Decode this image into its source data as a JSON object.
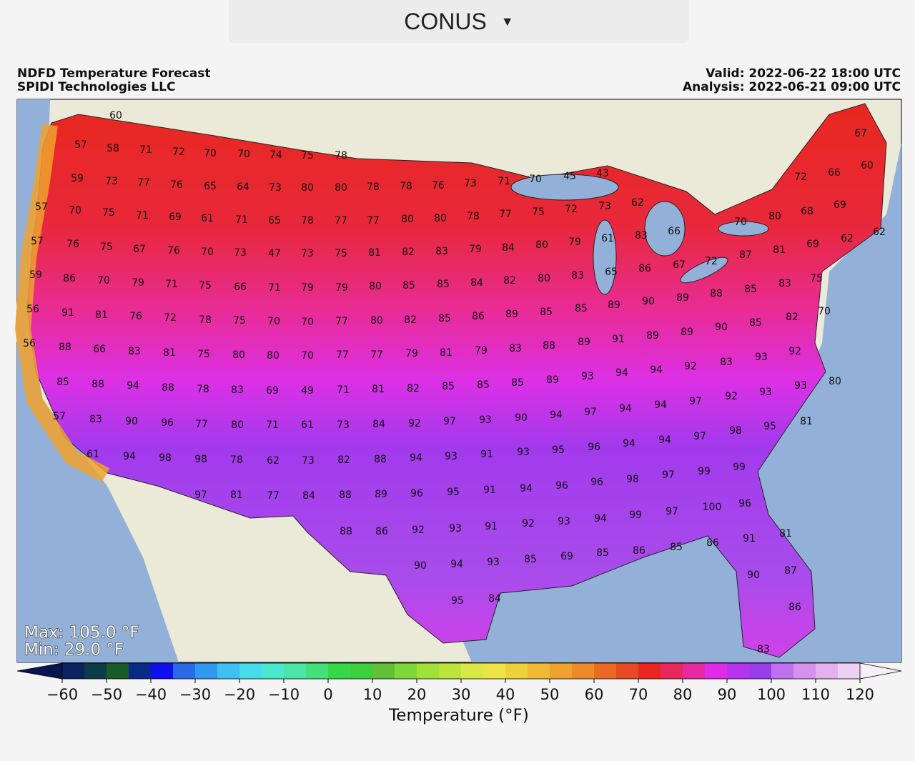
{
  "header": {
    "dropdown": "CONUS"
  },
  "map": {
    "title": [
      "NDFD Temperature Forecast",
      "SPIDI Technologies LLC"
    ],
    "valid": "Valid: 2022-06-22 18:00 UTC",
    "analysis": "Analysis: 2022-06-21 09:00 UTC",
    "max": "Max: 105.0 °F",
    "min": "Min: 29.0 °F",
    "labels": [
      60,
      57,
      58,
      71,
      72,
      70,
      70,
      74,
      75,
      78,
      59,
      73,
      77,
      76,
      65,
      64,
      73,
      80,
      80,
      78,
      78,
      76,
      73,
      71,
      70,
      45,
      43,
      72,
      66,
      60,
      67,
      57,
      70,
      75,
      71,
      69,
      61,
      71,
      65,
      78,
      77,
      77,
      80,
      80,
      78,
      77,
      75,
      72,
      73,
      62,
      80,
      68,
      69,
      57,
      76,
      75,
      67,
      76,
      70,
      73,
      47,
      73,
      75,
      81,
      82,
      83,
      79,
      84,
      80,
      79,
      61,
      83,
      66,
      70,
      81,
      69,
      62,
      62,
      59,
      86,
      70,
      79,
      71,
      75,
      66,
      71,
      79,
      79,
      80,
      85,
      85,
      84,
      82,
      80,
      83,
      65,
      86,
      67,
      72,
      87,
      75,
      56,
      91,
      81,
      76,
      72,
      78,
      75,
      70,
      70,
      77,
      80,
      82,
      85,
      86,
      89,
      85,
      85,
      89,
      90,
      89,
      88,
      85,
      83,
      82,
      70,
      56,
      88,
      66,
      83,
      81,
      75,
      80,
      80,
      70,
      77,
      77,
      79,
      81,
      79,
      83,
      88,
      89,
      91,
      89,
      89,
      90,
      85,
      93,
      92,
      92,
      83,
      85,
      88,
      94,
      88,
      78,
      83,
      69,
      49,
      71,
      81,
      82,
      85,
      85,
      85,
      89,
      93,
      94,
      94,
      92,
      93,
      93,
      80,
      97,
      94,
      94,
      57,
      83,
      90,
      96,
      77,
      80,
      71,
      61,
      73,
      84,
      92,
      97,
      93,
      90,
      94,
      97,
      81,
      95,
      98,
      97,
      61,
      94,
      98,
      98,
      78,
      62,
      73,
      82,
      88,
      94,
      93,
      91,
      93,
      95,
      96,
      94,
      94,
      99,
      99,
      97,
      81,
      77,
      84,
      88,
      89,
      96,
      95,
      91,
      94,
      96,
      96,
      98,
      97,
      100,
      96,
      88,
      86,
      92,
      93,
      91,
      92,
      93,
      94,
      99,
      97,
      81,
      91,
      86,
      85,
      86,
      85,
      69,
      85,
      90,
      94,
      93,
      90,
      87,
      86,
      83,
      95,
      84
    ]
  },
  "colorbar": {
    "label": "Temperature (°F)",
    "lim": [
      -60,
      120
    ],
    "ticks": [
      {
        "value": -60,
        "label": "−60"
      },
      {
        "value": -50,
        "label": "−50"
      },
      {
        "value": -40,
        "label": "−40"
      },
      {
        "value": -30,
        "label": "−30"
      },
      {
        "value": -20,
        "label": "−20"
      },
      {
        "value": -10,
        "label": "−10"
      },
      0,
      10,
      20,
      30,
      40,
      50,
      60,
      70,
      80,
      90,
      100,
      110,
      120
    ],
    "under": "#06164f",
    "over": "#f6f0f6",
    "colors": [
      "#0a2460",
      "#0e3b4a",
      "#175c27",
      "#0a2a86",
      "#1010ee",
      "#2a6ae8",
      "#3297ee",
      "#3ec0f2",
      "#45dcec",
      "#4ae8cf",
      "#4ae6a8",
      "#44e07a",
      "#36d848",
      "#3ecf3c",
      "#62c036",
      "#7ed83a",
      "#a0e23a",
      "#bce43c",
      "#d8e844",
      "#ece548",
      "#f0d03a",
      "#f0b934",
      "#f0a22e",
      "#ee8a28",
      "#ea6a24",
      "#e84a22",
      "#e8281e",
      "#e8285a",
      "#e82aa0",
      "#e02ce8",
      "#b634ee",
      "#9a3cea",
      "#c070ee",
      "#d890ec",
      "#e4b0ee",
      "#eed0f2"
    ]
  }
}
